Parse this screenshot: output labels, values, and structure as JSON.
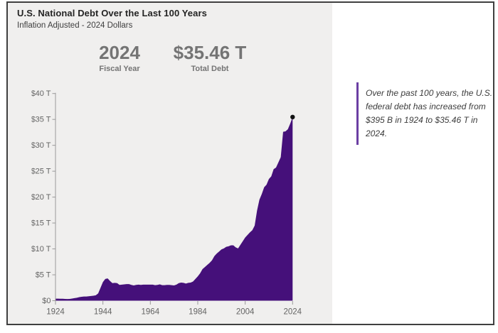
{
  "header": {
    "title": "U.S. National Debt Over the Last 100 Years",
    "subtitle": "Inflation Adjusted - 2024 Dollars"
  },
  "stats": [
    {
      "value": "2024",
      "label": "Fiscal Year"
    },
    {
      "value": "$35.46 T",
      "label": "Total Debt"
    }
  ],
  "annotation": {
    "lines": [
      "Over the past 100 years, the U.S.",
      "federal debt has increased from",
      "$395 B in 1924 to $35.46 T in",
      "2024."
    ],
    "bar_color": "#6b3fa3"
  },
  "chart_data": {
    "type": "area",
    "title": "U.S. National Debt Over the Last 100 Years",
    "subtitle": "Inflation Adjusted - 2024 Dollars",
    "xlabel": "",
    "ylabel": "",
    "xlim": [
      1924,
      2024
    ],
    "ylim": [
      0,
      40
    ],
    "grid": false,
    "legend": false,
    "units": "trillions of 2024 dollars",
    "x": [
      1924,
      1925,
      1926,
      1927,
      1928,
      1929,
      1930,
      1931,
      1932,
      1933,
      1934,
      1935,
      1936,
      1937,
      1938,
      1939,
      1940,
      1941,
      1942,
      1943,
      1944,
      1945,
      1946,
      1947,
      1948,
      1949,
      1950,
      1951,
      1952,
      1953,
      1954,
      1955,
      1956,
      1957,
      1958,
      1959,
      1960,
      1961,
      1962,
      1963,
      1964,
      1965,
      1966,
      1967,
      1968,
      1969,
      1970,
      1971,
      1972,
      1973,
      1974,
      1975,
      1976,
      1977,
      1978,
      1979,
      1980,
      1981,
      1982,
      1983,
      1984,
      1985,
      1986,
      1987,
      1988,
      1989,
      1990,
      1991,
      1992,
      1993,
      1994,
      1995,
      1996,
      1997,
      1998,
      1999,
      2000,
      2001,
      2002,
      2003,
      2004,
      2005,
      2006,
      2007,
      2008,
      2009,
      2010,
      2011,
      2012,
      2013,
      2014,
      2015,
      2016,
      2017,
      2018,
      2019,
      2020,
      2021,
      2022,
      2023,
      2024
    ],
    "values": [
      0.4,
      0.39,
      0.38,
      0.37,
      0.35,
      0.33,
      0.35,
      0.42,
      0.5,
      0.57,
      0.68,
      0.75,
      0.8,
      0.8,
      0.85,
      0.91,
      0.96,
      1.05,
      1.4,
      2.5,
      3.6,
      4.2,
      4.3,
      3.8,
      3.4,
      3.45,
      3.4,
      3.05,
      3.1,
      3.15,
      3.2,
      3.2,
      3.05,
      2.95,
      3.05,
      3.1,
      3.05,
      3.1,
      3.1,
      3.1,
      3.1,
      3.1,
      3.0,
      3.05,
      3.15,
      3.0,
      3.0,
      3.05,
      3.05,
      3.0,
      2.95,
      3.1,
      3.4,
      3.5,
      3.45,
      3.3,
      3.45,
      3.5,
      3.7,
      4.2,
      4.7,
      5.3,
      6.1,
      6.5,
      6.9,
      7.3,
      7.8,
      8.6,
      9.1,
      9.5,
      9.9,
      10.1,
      10.4,
      10.5,
      10.7,
      10.7,
      10.3,
      10.1,
      10.8,
      11.5,
      12.2,
      12.7,
      13.2,
      13.6,
      14.5,
      17.4,
      19.5,
      20.6,
      21.9,
      22.4,
      23.5,
      24.0,
      25.4,
      25.7,
      26.7,
      27.7,
      32.6,
      32.7,
      33.1,
      34.2,
      35.46
    ],
    "x_ticks": {
      "values": [
        1924,
        1944,
        1964,
        1984,
        2004,
        2024
      ],
      "labels": [
        "1924",
        "1944",
        "1964",
        "1984",
        "2004",
        "2024"
      ]
    },
    "y_ticks": {
      "values": [
        0,
        5,
        10,
        15,
        20,
        25,
        30,
        35,
        40
      ],
      "labels": [
        "$0",
        "$5 T",
        "$10 T",
        "$15 T",
        "$20 T",
        "$25 T",
        "$30 T",
        "$35 T",
        "$40 T"
      ]
    },
    "end_point": {
      "x": 2024,
      "y": 35.46,
      "label": "$35.46 T"
    },
    "area_color": "#45107a",
    "axis_color": "#9a9a9a",
    "tick_label_color": "#646464",
    "endpoint_dot_color": "#121212"
  }
}
